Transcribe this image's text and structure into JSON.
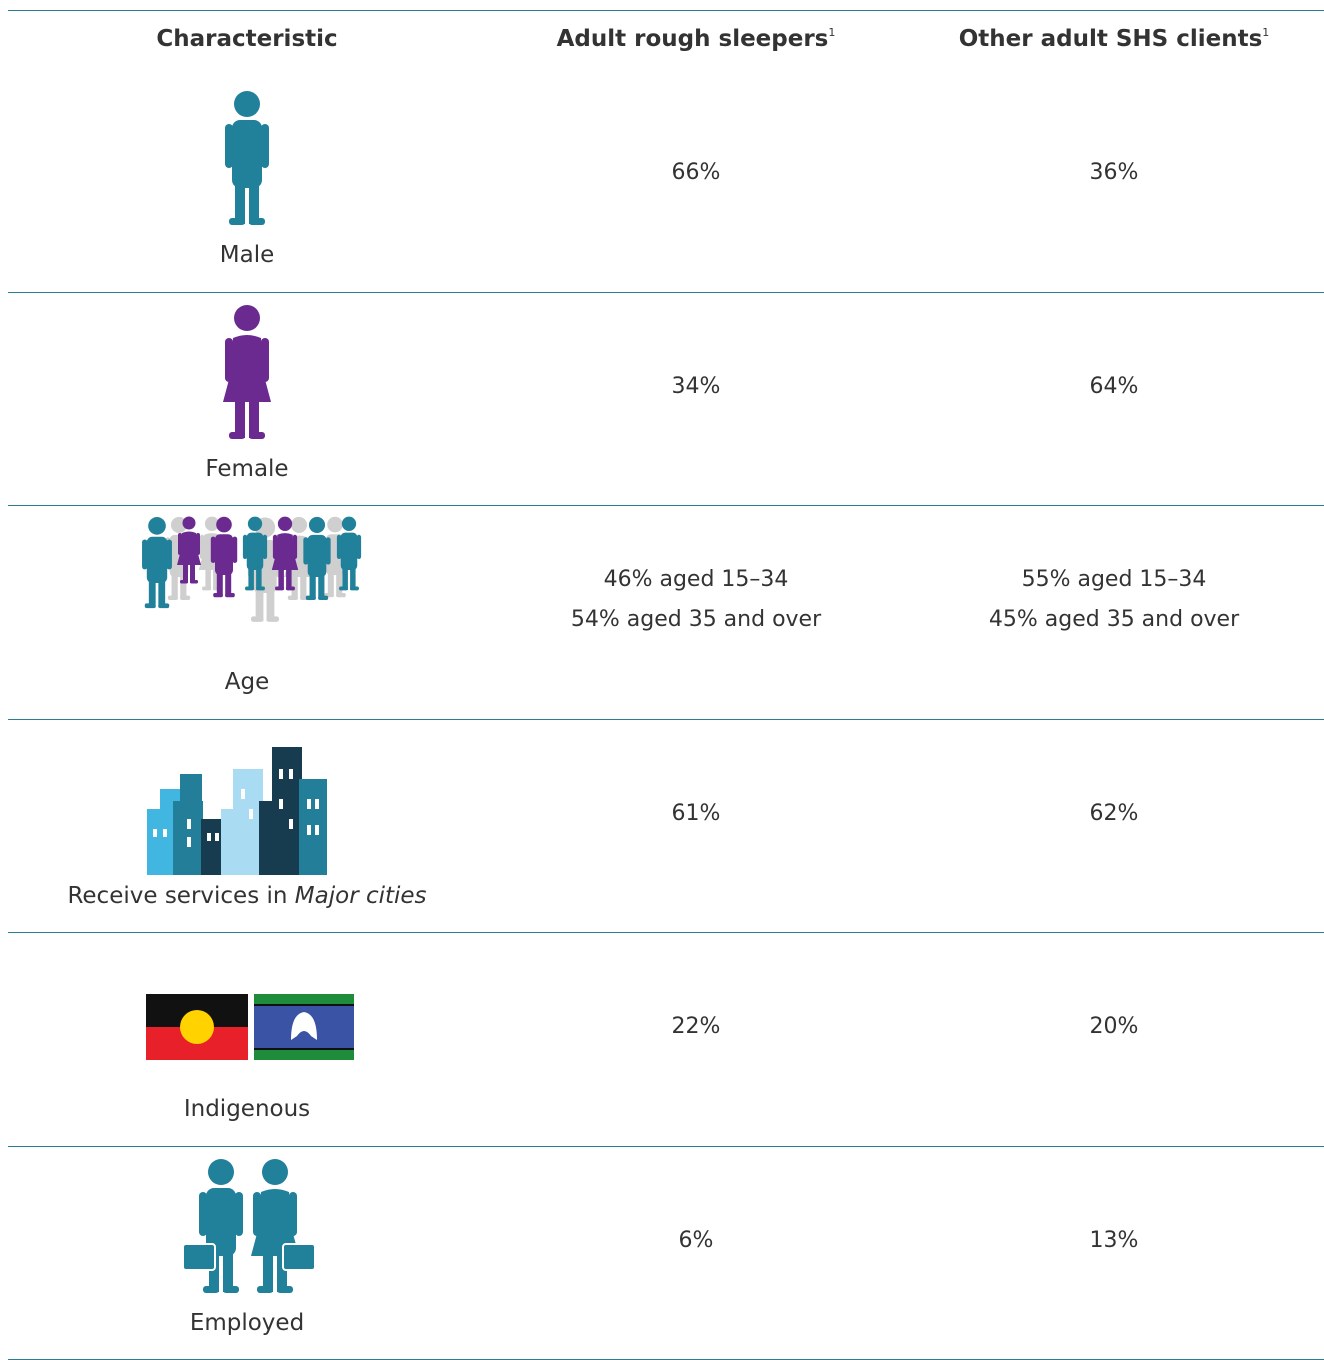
{
  "table": {
    "header": [
      {
        "text": "Characteristic"
      },
      {
        "text": "Adult rough sleepers",
        "note": "1"
      },
      {
        "text": "Other adult SHS clients",
        "note": "1"
      }
    ],
    "rows": [
      {
        "label": "Male",
        "rough": [
          "66%"
        ],
        "other": [
          "36%"
        ]
      },
      {
        "label": "Female",
        "rough": [
          "34%"
        ],
        "other": [
          "64%"
        ]
      },
      {
        "label": "Age",
        "rough": [
          "46% aged 15–34",
          "54% aged 35 and over"
        ],
        "other": [
          "55% aged 15–34",
          "45% aged 35 and over"
        ]
      },
      {
        "label": "Receive services in",
        "label_italic": "Major cities",
        "rough": [
          "61%"
        ],
        "other": [
          "62%"
        ]
      },
      {
        "label": "Indigenous",
        "rough": [
          "22%"
        ],
        "other": [
          "20%"
        ]
      },
      {
        "label": "Employed",
        "rough": [
          "6%"
        ],
        "other": [
          "13%"
        ]
      }
    ]
  }
}
